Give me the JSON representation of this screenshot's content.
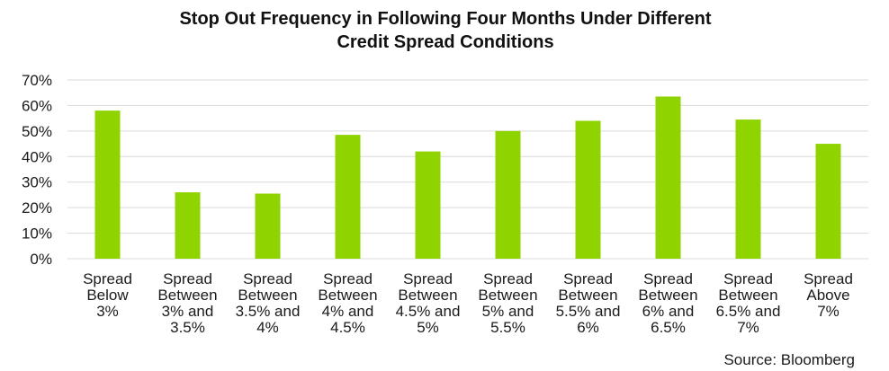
{
  "chart_data": {
    "type": "bar",
    "title": "Stop Out Frequency in Following Four Months Under Different Credit Spread Conditions",
    "title_lines": [
      "Stop Out Frequency in Following Four Months Under Different",
      "Credit Spread Conditions"
    ],
    "categories": [
      "Spread Below 3%",
      "Spread Between 3% and 3.5%",
      "Spread Between 3.5% and 4%",
      "Spread Between 4% and 4.5%",
      "Spread Between 4.5% and 5%",
      "Spread Between 5% and 5.5%",
      "Spread Between 5.5% and 6%",
      "Spread Between 6% and 6.5%",
      "Spread Between 6.5% and 7%",
      "Spread Above 7%"
    ],
    "category_label_lines": [
      [
        "Spread",
        "Below",
        "3%"
      ],
      [
        "Spread",
        "Between",
        "3% and",
        "3.5%"
      ],
      [
        "Spread",
        "Between",
        "3.5% and",
        "4%"
      ],
      [
        "Spread",
        "Between",
        "4% and",
        "4.5%"
      ],
      [
        "Spread",
        "Between",
        "4.5% and",
        "5%"
      ],
      [
        "Spread",
        "Between",
        "5% and",
        "5.5%"
      ],
      [
        "Spread",
        "Between",
        "5.5% and",
        "6%"
      ],
      [
        "Spread",
        "Between",
        "6% and",
        "6.5%"
      ],
      [
        "Spread",
        "Between",
        "6.5% and",
        "7%"
      ],
      [
        "Spread",
        "Above",
        "7%"
      ]
    ],
    "values": [
      58,
      26,
      25.5,
      48.5,
      42,
      50,
      54,
      63.5,
      54.5,
      45
    ],
    "ylim": [
      0,
      70
    ],
    "yticks": [
      0,
      10,
      20,
      30,
      40,
      50,
      60,
      70
    ],
    "ytick_labels": [
      "0%",
      "10%",
      "20%",
      "30%",
      "40%",
      "50%",
      "60%",
      "70%"
    ],
    "xlabel": "",
    "ylabel": "",
    "grid": true,
    "legend": "none",
    "bar_color": "#8fd400",
    "grid_color": "#d9d9d9"
  },
  "source": "Source: Bloomberg"
}
